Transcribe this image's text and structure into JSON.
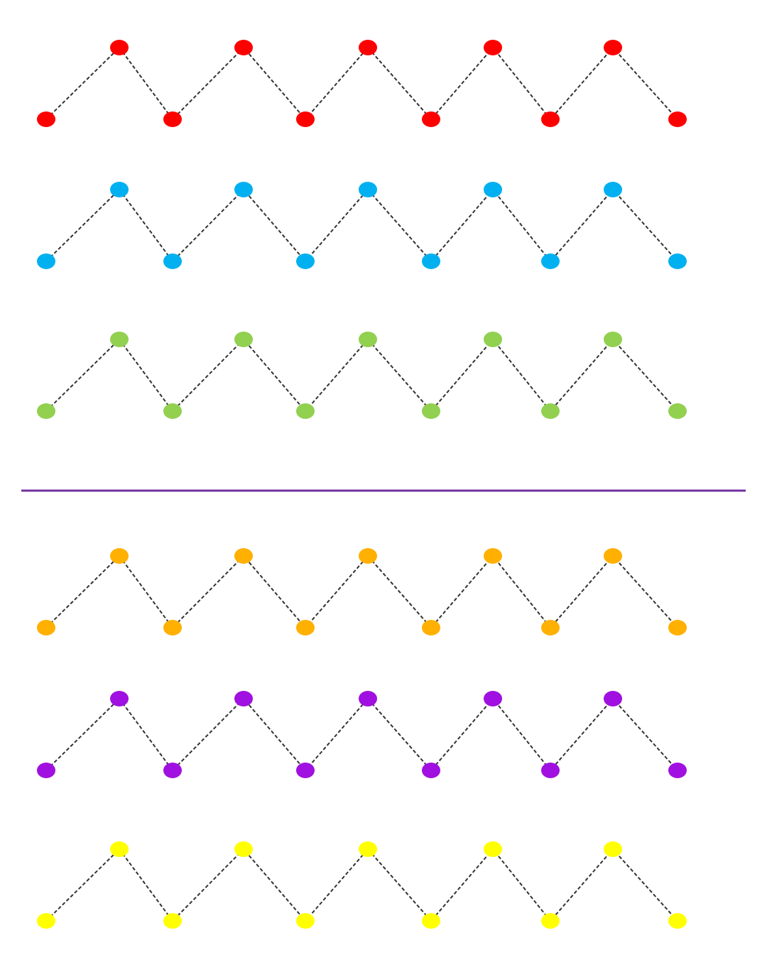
{
  "rows": [
    {
      "color": "#ff0000"
    },
    {
      "color": "#00b0f0"
    },
    {
      "color": "#92d050"
    },
    {
      "color": "#ffb000"
    },
    {
      "color": "#a010e0"
    },
    {
      "color": "#ffff00"
    }
  ],
  "divider": {
    "color": "#7030a0"
  }
}
